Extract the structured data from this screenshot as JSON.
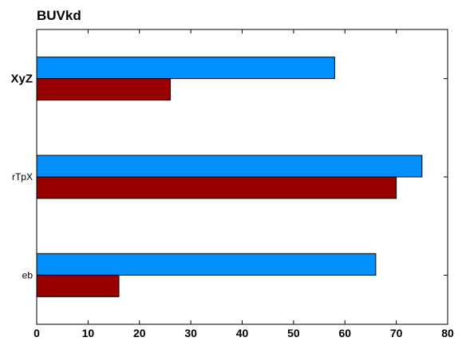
{
  "chart_data": {
    "type": "bar",
    "orientation": "horizontal",
    "title": "BUVkd",
    "categories": [
      "XyZ",
      "rTpX",
      "eb"
    ],
    "category_bold": [
      true,
      false,
      false
    ],
    "series": [
      {
        "color": "#0090ff",
        "values": [
          58,
          75,
          66
        ]
      },
      {
        "color": "#990000",
        "values": [
          26,
          70,
          16
        ]
      }
    ],
    "xlim": [
      0,
      80
    ],
    "xticks": [
      0,
      10,
      20,
      30,
      40,
      50,
      60,
      70,
      80
    ],
    "xlabel": "",
    "ylabel": "",
    "grid": false,
    "legend": "none"
  }
}
